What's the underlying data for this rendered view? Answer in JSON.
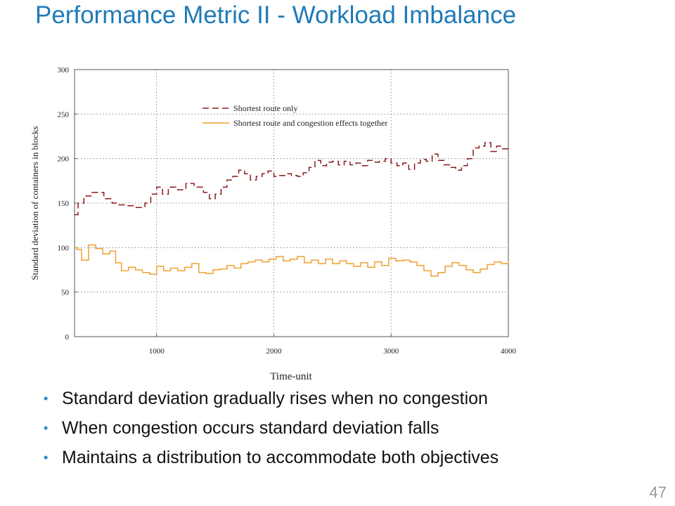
{
  "slide": {
    "title": "Performance Metric II - Workload Imbalance",
    "bullets": [
      "Standard deviation gradually rises when no congestion",
      "When congestion occurs standard deviation falls",
      "Maintains a distribution to accommodate both objectives"
    ],
    "page_number": "47"
  },
  "colors": {
    "title": "#1f7ab8",
    "bullet_marker": "#2a86c4",
    "series_shortest_only": "#8b1a1a",
    "series_congestion": "#f0a030"
  },
  "chart_data": {
    "type": "line",
    "title": "",
    "xlabel": "Time-unit",
    "ylabel": "Standard deviation of containers in blocks",
    "xlim": [
      300,
      4000
    ],
    "ylim": [
      0,
      300
    ],
    "xticks": [
      1000,
      2000,
      3000,
      4000
    ],
    "yticks": [
      0,
      50,
      100,
      150,
      200,
      250,
      300
    ],
    "grid": true,
    "legend_position": "top-center",
    "step": true,
    "series": [
      {
        "name": "Shortest route only",
        "style": "dashed",
        "color": "#8b1a1a",
        "x": [
          300,
          330,
          380,
          450,
          550,
          620,
          680,
          750,
          820,
          900,
          950,
          1000,
          1050,
          1100,
          1180,
          1250,
          1320,
          1400,
          1450,
          1500,
          1550,
          1600,
          1650,
          1700,
          1750,
          1800,
          1850,
          1900,
          1950,
          2000,
          2050,
          2100,
          2150,
          2200,
          2250,
          2300,
          2350,
          2400,
          2450,
          2500,
          2550,
          2600,
          2650,
          2700,
          2750,
          2800,
          2850,
          2900,
          2950,
          3000,
          3050,
          3100,
          3150,
          3200,
          3250,
          3300,
          3350,
          3400,
          3450,
          3500,
          3550,
          3600,
          3650,
          3700,
          3750,
          3800,
          3850,
          3900,
          3950,
          4000
        ],
        "y": [
          137,
          150,
          158,
          162,
          155,
          150,
          148,
          147,
          145,
          150,
          160,
          168,
          160,
          168,
          165,
          172,
          168,
          162,
          155,
          160,
          168,
          176,
          180,
          187,
          183,
          176,
          180,
          183,
          186,
          180,
          181,
          183,
          181,
          180,
          184,
          190,
          198,
          192,
          196,
          197,
          193,
          197,
          193,
          195,
          192,
          198,
          196,
          197,
          200,
          195,
          192,
          195,
          188,
          195,
          199,
          197,
          205,
          198,
          193,
          190,
          187,
          192,
          200,
          212,
          214,
          218,
          208,
          214,
          211,
          214
        ]
      },
      {
        "name": "Shortest route and congestion effects together",
        "style": "solid",
        "color": "#f0a030",
        "x": [
          300,
          320,
          360,
          420,
          480,
          540,
          600,
          650,
          700,
          760,
          820,
          880,
          940,
          1000,
          1060,
          1120,
          1180,
          1240,
          1300,
          1360,
          1420,
          1480,
          1540,
          1600,
          1660,
          1720,
          1780,
          1840,
          1900,
          1960,
          2020,
          2080,
          2140,
          2200,
          2260,
          2320,
          2380,
          2440,
          2500,
          2560,
          2620,
          2680,
          2740,
          2800,
          2860,
          2920,
          2980,
          3040,
          3100,
          3160,
          3220,
          3280,
          3340,
          3400,
          3460,
          3520,
          3580,
          3640,
          3700,
          3760,
          3820,
          3880,
          3940,
          4000
        ],
        "y": [
          100,
          98,
          86,
          103,
          99,
          93,
          96,
          83,
          74,
          78,
          75,
          72,
          70,
          79,
          74,
          77,
          74,
          78,
          82,
          72,
          71,
          75,
          76,
          80,
          77,
          82,
          84,
          86,
          84,
          87,
          90,
          85,
          87,
          90,
          83,
          86,
          82,
          87,
          82,
          85,
          82,
          79,
          83,
          78,
          84,
          80,
          88,
          85,
          86,
          84,
          80,
          74,
          68,
          72,
          79,
          83,
          80,
          75,
          72,
          76,
          81,
          84,
          82,
          85
        ]
      }
    ]
  }
}
